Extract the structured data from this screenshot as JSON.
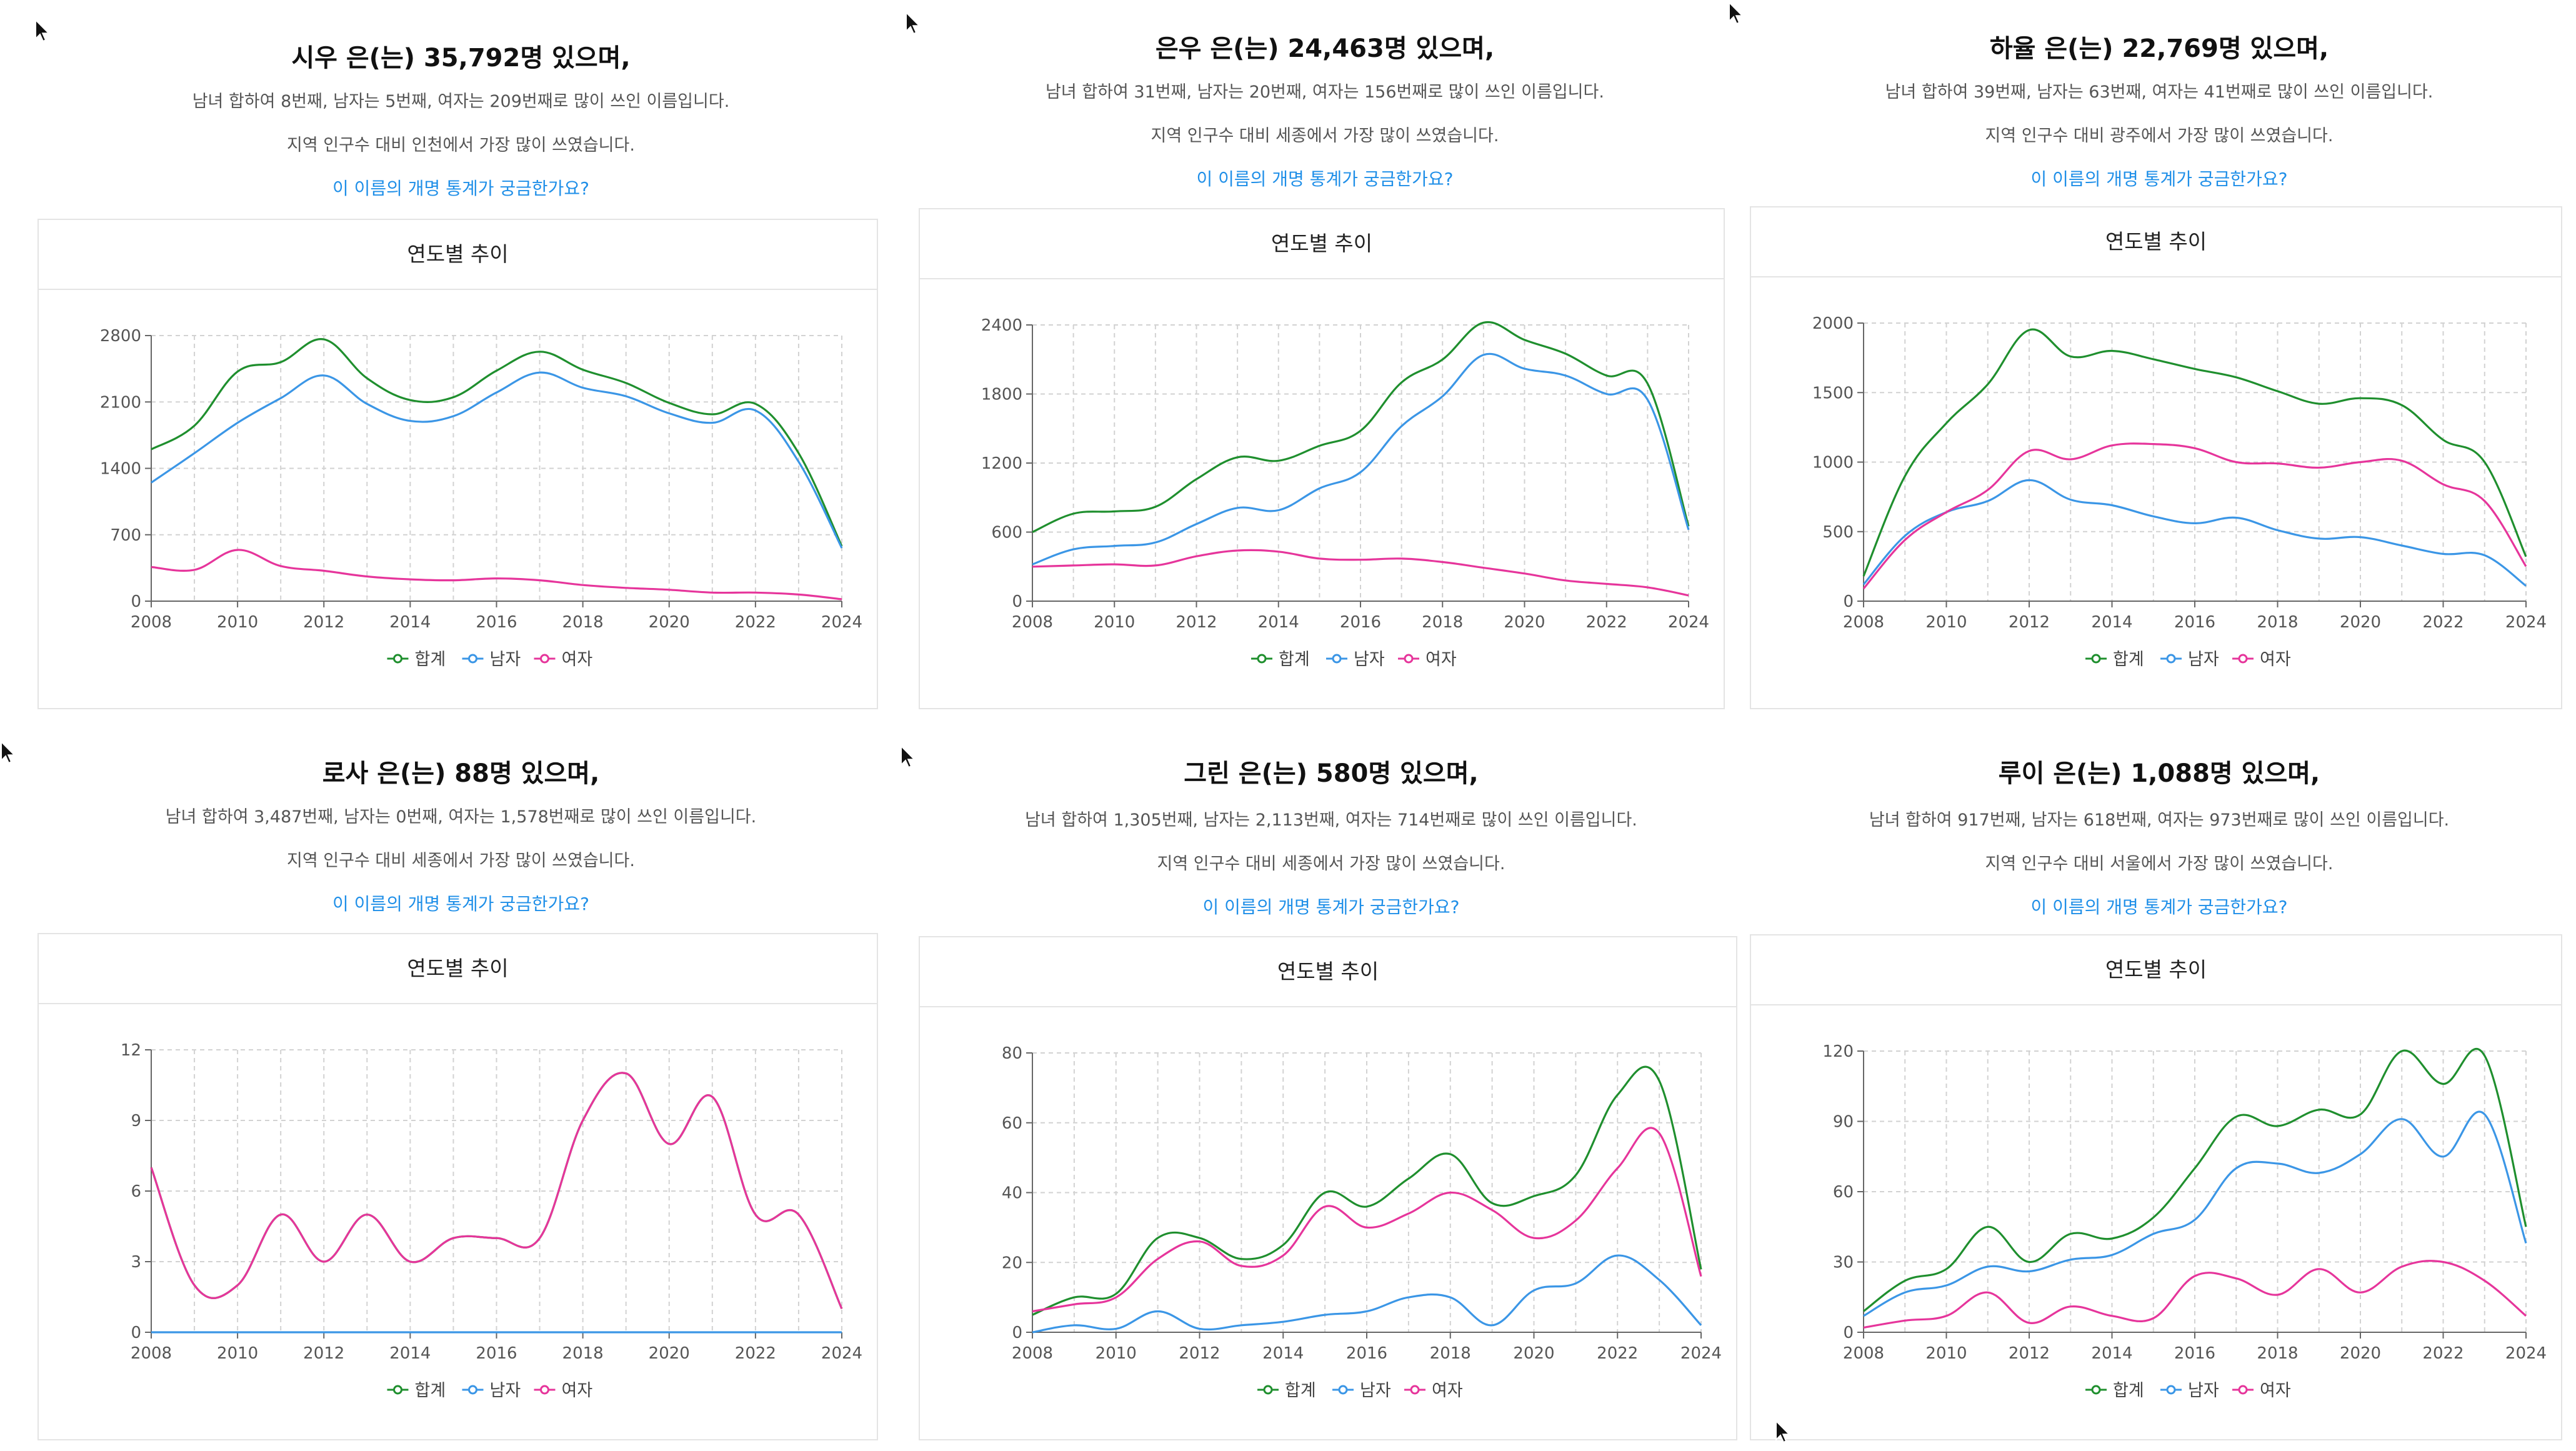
{
  "cursor_icons": [
    "cursor-arrow-icon"
  ],
  "legend_colors": {
    "total": "#1f8f2e",
    "male": "#3b96e6",
    "female": "#e6359b"
  },
  "panels": [
    {
      "title": "시우 은(는) 35,792명 있으며,",
      "rank_text": "남녀 합하여 8번째, 남자는 5번째, 여자는 209번째로 많이 쓰인 이름입니다.",
      "region_text": "지역 인구수 대비 인천에서 가장 많이 쓰였습니다.",
      "link_text": "이 이름의 개명 통계가 궁금한가요?",
      "card_title": "연도별 추이"
    },
    {
      "title": "은우 은(는) 24,463명 있으며,",
      "rank_text": "남녀 합하여 31번째, 남자는 20번째, 여자는 156번째로 많이 쓰인 이름입니다.",
      "region_text": "지역 인구수 대비 세종에서 가장 많이 쓰였습니다.",
      "link_text": "이 이름의 개명 통계가 궁금한가요?",
      "card_title": "연도별 추이"
    },
    {
      "title": "하율 은(는) 22,769명 있으며,",
      "rank_text": "남녀 합하여 39번째, 남자는 63번째, 여자는 41번째로 많이 쓰인 이름입니다.",
      "region_text": "지역 인구수 대비 광주에서 가장 많이 쓰였습니다.",
      "link_text": "이 이름의 개명 통계가 궁금한가요?",
      "card_title": "연도별 추이"
    },
    {
      "title": "로사 은(는) 88명 있으며,",
      "rank_text": "남녀 합하여 3,487번째, 남자는 0번째, 여자는 1,578번째로 많이 쓰인 이름입니다.",
      "region_text": "지역 인구수 대비 세종에서 가장 많이 쓰였습니다.",
      "link_text": "이 이름의 개명 통계가 궁금한가요?",
      "card_title": "연도별 추이"
    },
    {
      "title": "그린 은(는) 580명 있으며,",
      "rank_text": "남녀 합하여 1,305번째, 남자는 2,113번째, 여자는 714번째로 많이 쓰인 이름입니다.",
      "region_text": "지역 인구수 대비 세종에서 가장 많이 쓰였습니다.",
      "link_text": "이 이름의 개명 통계가 궁금한가요?",
      "card_title": "연도별 추이"
    },
    {
      "title": "루이 은(는) 1,088명 있으며,",
      "rank_text": "남녀 합하여 917번째, 남자는 618번째, 여자는 973번째로 많이 쓰인 이름입니다.",
      "region_text": "지역 인구수 대비 서울에서 가장 많이 쓰였습니다.",
      "link_text": "이 이름의 개명 통계가 궁금한가요?",
      "card_title": "연도별 추이"
    }
  ],
  "chart_data": [
    {
      "type": "line",
      "x": [
        2008,
        2009,
        2010,
        2011,
        2012,
        2013,
        2014,
        2015,
        2016,
        2017,
        2018,
        2019,
        2020,
        2021,
        2022,
        2023,
        2024
      ],
      "x_ticks": [
        2008,
        2010,
        2012,
        2014,
        2016,
        2018,
        2020,
        2022,
        2024
      ],
      "y_ticks": [
        0,
        700,
        1400,
        2100,
        2800
      ],
      "ylim": [
        0,
        2800
      ],
      "grid": true,
      "legend": "bottom",
      "series": [
        {
          "name": "합계",
          "color": "#1f8f2e",
          "values": [
            1600,
            1850,
            2420,
            2520,
            2760,
            2350,
            2120,
            2150,
            2430,
            2630,
            2440,
            2300,
            2090,
            1970,
            2080,
            1560,
            580
          ]
        },
        {
          "name": "남자",
          "color": "#3b96e6",
          "values": [
            1250,
            1560,
            1880,
            2140,
            2380,
            2080,
            1900,
            1950,
            2200,
            2410,
            2250,
            2160,
            1980,
            1880,
            2010,
            1470,
            560
          ]
        },
        {
          "name": "여자",
          "color": "#e6359b",
          "values": [
            360,
            330,
            540,
            370,
            320,
            260,
            230,
            220,
            240,
            220,
            170,
            140,
            120,
            90,
            90,
            70,
            20
          ]
        }
      ]
    },
    {
      "type": "line",
      "x": [
        2008,
        2009,
        2010,
        2011,
        2012,
        2013,
        2014,
        2015,
        2016,
        2017,
        2018,
        2019,
        2020,
        2021,
        2022,
        2023,
        2024
      ],
      "x_ticks": [
        2008,
        2010,
        2012,
        2014,
        2016,
        2018,
        2020,
        2022,
        2024
      ],
      "y_ticks": [
        0,
        600,
        1200,
        1800,
        2400
      ],
      "ylim": [
        0,
        2400
      ],
      "grid": true,
      "legend": "bottom",
      "series": [
        {
          "name": "합계",
          "color": "#1f8f2e",
          "values": [
            600,
            760,
            780,
            820,
            1060,
            1250,
            1220,
            1350,
            1480,
            1900,
            2100,
            2420,
            2270,
            2150,
            1960,
            1890,
            650
          ]
        },
        {
          "name": "남자",
          "color": "#3b96e6",
          "values": [
            320,
            450,
            480,
            510,
            670,
            810,
            790,
            980,
            1120,
            1520,
            1780,
            2140,
            2020,
            1960,
            1800,
            1750,
            620
          ]
        },
        {
          "name": "여자",
          "color": "#e6359b",
          "values": [
            300,
            310,
            320,
            310,
            390,
            440,
            430,
            370,
            360,
            370,
            340,
            290,
            240,
            180,
            150,
            120,
            50
          ]
        }
      ]
    },
    {
      "type": "line",
      "x": [
        2008,
        2009,
        2010,
        2011,
        2012,
        2013,
        2014,
        2015,
        2016,
        2017,
        2018,
        2019,
        2020,
        2021,
        2022,
        2023,
        2024
      ],
      "x_ticks": [
        2008,
        2010,
        2012,
        2014,
        2016,
        2018,
        2020,
        2022,
        2024
      ],
      "y_ticks": [
        0,
        500,
        1000,
        1500,
        2000
      ],
      "ylim": [
        0,
        2000
      ],
      "grid": true,
      "legend": "bottom",
      "series": [
        {
          "name": "합계",
          "color": "#1f8f2e",
          "values": [
            180,
            900,
            1280,
            1560,
            1950,
            1760,
            1800,
            1740,
            1670,
            1610,
            1510,
            1420,
            1460,
            1410,
            1160,
            1000,
            320
          ]
        },
        {
          "name": "남자",
          "color": "#3b96e6",
          "values": [
            120,
            470,
            640,
            720,
            870,
            730,
            690,
            610,
            560,
            600,
            510,
            450,
            460,
            400,
            340,
            330,
            110
          ]
        },
        {
          "name": "여자",
          "color": "#e6359b",
          "values": [
            90,
            440,
            640,
            800,
            1080,
            1020,
            1120,
            1130,
            1100,
            1000,
            990,
            960,
            1000,
            1010,
            840,
            720,
            250
          ]
        }
      ]
    },
    {
      "type": "line",
      "x": [
        2008,
        2009,
        2010,
        2011,
        2012,
        2013,
        2014,
        2015,
        2016,
        2017,
        2018,
        2019,
        2020,
        2021,
        2022,
        2023,
        2024
      ],
      "x_ticks": [
        2008,
        2010,
        2012,
        2014,
        2016,
        2018,
        2020,
        2022,
        2024
      ],
      "y_ticks": [
        0,
        3,
        6,
        9,
        12
      ],
      "ylim": [
        0,
        12
      ],
      "grid": true,
      "legend": "bottom",
      "series": [
        {
          "name": "합계",
          "color": "#1f8f2e",
          "values": [
            7,
            2,
            2,
            5,
            3,
            5,
            3,
            4,
            4,
            4,
            9,
            11,
            8,
            10,
            5,
            5,
            1
          ]
        },
        {
          "name": "남자",
          "color": "#3b96e6",
          "values": [
            0,
            0,
            0,
            0,
            0,
            0,
            0,
            0,
            0,
            0,
            0,
            0,
            0,
            0,
            0,
            0,
            0
          ]
        },
        {
          "name": "여자",
          "color": "#e6359b",
          "values": [
            7,
            2,
            2,
            5,
            3,
            5,
            3,
            4,
            4,
            4,
            9,
            11,
            8,
            10,
            5,
            5,
            1
          ]
        }
      ]
    },
    {
      "type": "line",
      "x": [
        2008,
        2009,
        2010,
        2011,
        2012,
        2013,
        2014,
        2015,
        2016,
        2017,
        2018,
        2019,
        2020,
        2021,
        2022,
        2023,
        2024
      ],
      "x_ticks": [
        2008,
        2010,
        2012,
        2014,
        2016,
        2018,
        2020,
        2022,
        2024
      ],
      "y_ticks": [
        0,
        20,
        40,
        60,
        80
      ],
      "ylim": [
        0,
        80
      ],
      "grid": true,
      "legend": "bottom",
      "series": [
        {
          "name": "합계",
          "color": "#1f8f2e",
          "values": [
            5,
            10,
            11,
            27,
            27,
            21,
            25,
            40,
            36,
            44,
            51,
            37,
            39,
            45,
            68,
            72,
            18
          ]
        },
        {
          "name": "남자",
          "color": "#3b96e6",
          "values": [
            0,
            2,
            1,
            6,
            1,
            2,
            3,
            5,
            6,
            10,
            10,
            2,
            12,
            14,
            22,
            15,
            2
          ]
        },
        {
          "name": "여자",
          "color": "#e6359b",
          "values": [
            6,
            8,
            10,
            21,
            26,
            19,
            22,
            36,
            30,
            34,
            40,
            35,
            27,
            32,
            47,
            57,
            16
          ]
        }
      ]
    },
    {
      "type": "line",
      "x": [
        2008,
        2009,
        2010,
        2011,
        2012,
        2013,
        2014,
        2015,
        2016,
        2017,
        2018,
        2019,
        2020,
        2021,
        2022,
        2023,
        2024
      ],
      "x_ticks": [
        2008,
        2010,
        2012,
        2014,
        2016,
        2018,
        2020,
        2022,
        2024
      ],
      "y_ticks": [
        0,
        30,
        60,
        90,
        120
      ],
      "ylim": [
        0,
        120
      ],
      "grid": true,
      "legend": "bottom",
      "series": [
        {
          "name": "합계",
          "color": "#1f8f2e",
          "values": [
            9,
            22,
            27,
            45,
            30,
            42,
            40,
            49,
            70,
            92,
            88,
            95,
            93,
            120,
            106,
            118,
            45
          ]
        },
        {
          "name": "남자",
          "color": "#3b96e6",
          "values": [
            7,
            17,
            20,
            28,
            26,
            31,
            33,
            42,
            48,
            70,
            72,
            68,
            76,
            91,
            75,
            93,
            38
          ]
        },
        {
          "name": "여자",
          "color": "#e6359b",
          "values": [
            2,
            5,
            7,
            17,
            4,
            11,
            7,
            6,
            24,
            23,
            16,
            27,
            17,
            28,
            30,
            22,
            7
          ]
        }
      ]
    }
  ]
}
